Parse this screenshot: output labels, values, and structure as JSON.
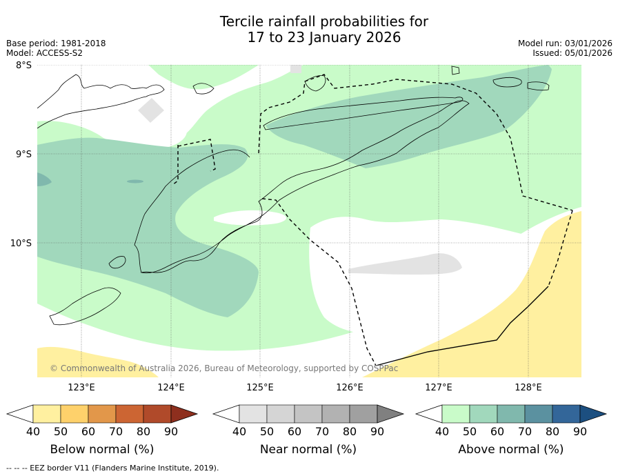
{
  "title_line1": "Tercile rainfall probabilities for",
  "title_line2": "17 to 23 January 2026",
  "base_period": "Base period: 1981-2018",
  "model": "Model: ACCESS-S2",
  "model_run": "Model run: 03/01/2026",
  "issued": "Issued: 05/01/2026",
  "copyright": "© Commonwealth of Australia 2026, Bureau of Meteorology, supported by COSPPac",
  "lat_labels": [
    "8°S",
    "9°S",
    "10°S"
  ],
  "lon_labels": [
    "123°E",
    "124°E",
    "125°E",
    "126°E",
    "127°E",
    "128°E"
  ],
  "colorbars": [
    {
      "label": "Below normal (%)",
      "ticks": [
        "40",
        "50",
        "60",
        "70",
        "80",
        "90"
      ],
      "colors": [
        "#fff0a0",
        "#fed16b",
        "#e2974a",
        "#cc6533",
        "#b04a2a",
        "#8e2f1e"
      ]
    },
    {
      "label": "Near normal (%)",
      "ticks": [
        "40",
        "50",
        "60",
        "70",
        "80",
        "90"
      ],
      "colors": [
        "#e3e3e3",
        "#d5d5d5",
        "#c4c4c4",
        "#b2b2b2",
        "#a0a0a0",
        "#808080"
      ]
    },
    {
      "label": "Above normal (%)",
      "ticks": [
        "40",
        "50",
        "60",
        "70",
        "80",
        "90"
      ],
      "colors": [
        "#c9fbc9",
        "#a1d8bc",
        "#80b8ad",
        "#5b91a0",
        "#336699",
        "#1c4f80"
      ]
    }
  ],
  "footnote": "--  --  -- EEZ border V11 (Flanders Marine Institute, 2019).",
  "colors": {
    "below_40": "#fff0a0",
    "near_40": "#e3e3e3",
    "above_40": "#c9fbc9",
    "above_50": "#a1d8bc",
    "above_60": "#80b8ad"
  }
}
